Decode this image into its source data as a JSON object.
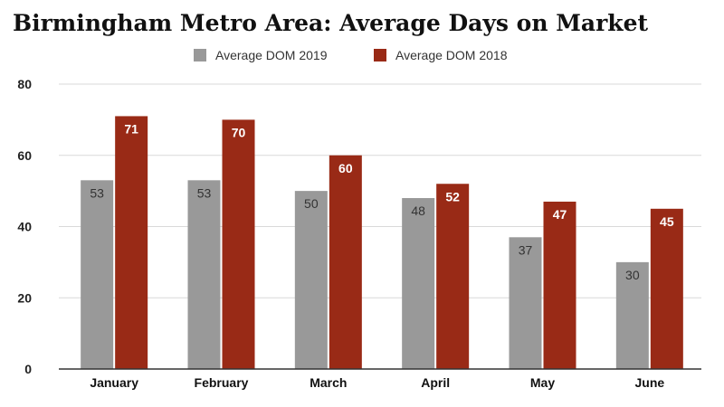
{
  "chart_data": {
    "type": "bar",
    "title": "Birmingham Metro Area: Average Days on Market",
    "categories": [
      "January",
      "February",
      "March",
      "April",
      "May",
      "June"
    ],
    "series": [
      {
        "name": "Average DOM 2019",
        "values": [
          53,
          53,
          50,
          48,
          37,
          30
        ],
        "color": "#999999",
        "label_color": "#333333"
      },
      {
        "name": "Average DOM 2018",
        "values": [
          71,
          70,
          60,
          52,
          47,
          45
        ],
        "color": "#992a16",
        "label_color": "#ffffff"
      }
    ],
    "ylim": [
      0,
      80
    ],
    "yticks": [
      0,
      20,
      40,
      60,
      80
    ],
    "grid": true,
    "legend": "top-center"
  }
}
